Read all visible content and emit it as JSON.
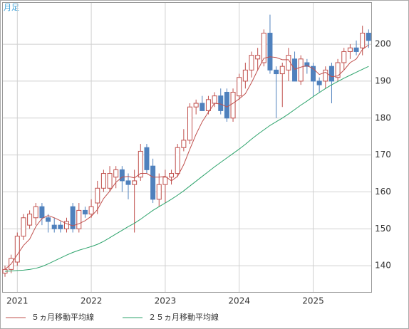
{
  "chart_data": {
    "type": "candlestick",
    "title": "月足",
    "categories": [
      null,
      null,
      "2021",
      null,
      null,
      null,
      null,
      null,
      null,
      null,
      null,
      null,
      null,
      null,
      "2022",
      null,
      null,
      null,
      null,
      null,
      null,
      null,
      null,
      null,
      null,
      null,
      "2023",
      null,
      null,
      null,
      null,
      null,
      null,
      null,
      null,
      null,
      null,
      null,
      "2024",
      null,
      null,
      null,
      null,
      null,
      null,
      null,
      null,
      null,
      null,
      null,
      "2025",
      null,
      null,
      null,
      null,
      null,
      null,
      null,
      null,
      null
    ],
    "ohlc": {
      "open": [
        138,
        139,
        141,
        148,
        151,
        153,
        156,
        153,
        151,
        151,
        150,
        156,
        150,
        155,
        154,
        157,
        161,
        161,
        164,
        166,
        163,
        162,
        164,
        172,
        167,
        158,
        162,
        164,
        165,
        172,
        174,
        183,
        184,
        182,
        184,
        186,
        187,
        180,
        186,
        190,
        193,
        196,
        195,
        203,
        193,
        192,
        193,
        196,
        190,
        195,
        194,
        190,
        190,
        194,
        191,
        195,
        198,
        199,
        199,
        203
      ],
      "high": [
        140,
        143,
        149,
        154,
        155,
        157,
        157,
        154,
        153,
        152,
        153,
        157,
        157,
        156,
        158,
        163,
        166,
        167,
        167,
        167,
        165,
        166,
        173,
        173,
        169,
        165,
        166,
        166,
        173,
        177,
        184,
        185,
        186,
        186,
        187,
        188,
        188,
        188,
        192,
        195,
        198,
        199,
        204,
        208,
        194,
        195,
        199,
        198,
        197,
        196,
        195,
        191,
        194,
        195,
        196,
        199,
        200,
        201,
        205,
        204
      ],
      "low": [
        137,
        138,
        140,
        147,
        150,
        151,
        151,
        149,
        149,
        149,
        149,
        149,
        149,
        153,
        153,
        154,
        160,
        160,
        161,
        160,
        158,
        149,
        163,
        165,
        157,
        156,
        157,
        162,
        164,
        171,
        173,
        181,
        182,
        181,
        183,
        181,
        179,
        179,
        185,
        188,
        191,
        193,
        194,
        192,
        180,
        183,
        190,
        190,
        189,
        192,
        186,
        187,
        188,
        184,
        190,
        193,
        196,
        197,
        197,
        199
      ],
      "close": [
        139,
        142,
        148,
        153,
        154,
        156,
        153,
        152,
        150,
        150,
        152,
        150,
        155,
        154,
        156,
        161,
        165,
        165,
        166,
        163,
        162,
        163,
        171,
        166,
        158,
        162,
        164,
        165,
        172,
        174,
        183,
        184,
        182,
        185,
        186,
        182,
        180,
        187,
        191,
        193,
        197,
        197,
        203,
        193,
        192,
        194,
        197,
        190,
        196,
        194,
        190,
        189,
        193,
        190,
        195,
        198,
        199,
        198,
        203,
        201
      ]
    },
    "up_color": "#c0504d",
    "down_color": "#4f81bd",
    "series": [
      {
        "name": "５ヵ月移動平均線",
        "color": "#c0504d",
        "values": [
          139,
          140.5,
          143,
          145.5,
          147.2,
          150.6,
          152.8,
          153.6,
          153,
          152.2,
          151.4,
          150.8,
          151.4,
          152.2,
          153.4,
          155.2,
          158.2,
          160.2,
          162.6,
          164,
          164.2,
          163.8,
          165,
          165,
          164,
          164,
          164.2,
          163,
          164.2,
          167.4,
          171.6,
          175.6,
          179,
          181.6,
          184,
          183.8,
          183,
          184,
          185.2,
          186.6,
          189.6,
          193,
          196.2,
          196.6,
          196.4,
          195.8,
          195.8,
          193.2,
          193.8,
          194.2,
          193.4,
          191.8,
          192.4,
          191.2,
          191.4,
          193,
          195,
          196,
          198.6,
          199.8
        ]
      },
      {
        "name": "２５ヵ月移動平均線",
        "color": "#2ca36b",
        "values": [
          138.5,
          138.6,
          138.7,
          138.8,
          139.0,
          139.3,
          139.8,
          140.5,
          141.3,
          142.1,
          142.9,
          143.6,
          144.2,
          144.7,
          145.2,
          145.8,
          146.6,
          147.6,
          148.6,
          149.6,
          150.6,
          151.5,
          152.6,
          153.8,
          155.0,
          156.0,
          157.0,
          158.0,
          159.1,
          160.3,
          161.6,
          162.9,
          164.2,
          165.5,
          166.8,
          168.0,
          169.2,
          170.4,
          171.6,
          172.9,
          174.3,
          175.6,
          176.8,
          178.0,
          179.0,
          180.0,
          181.1,
          182.3,
          183.5,
          184.6,
          185.8,
          186.9,
          188.0,
          189.0,
          189.9,
          190.8,
          191.6,
          192.4,
          193.2,
          194.0
        ]
      }
    ],
    "ylim": [
      132.9,
      211.2
    ],
    "yticks": [
      140,
      150,
      160,
      170,
      180,
      190,
      200
    ],
    "grid": true
  }
}
